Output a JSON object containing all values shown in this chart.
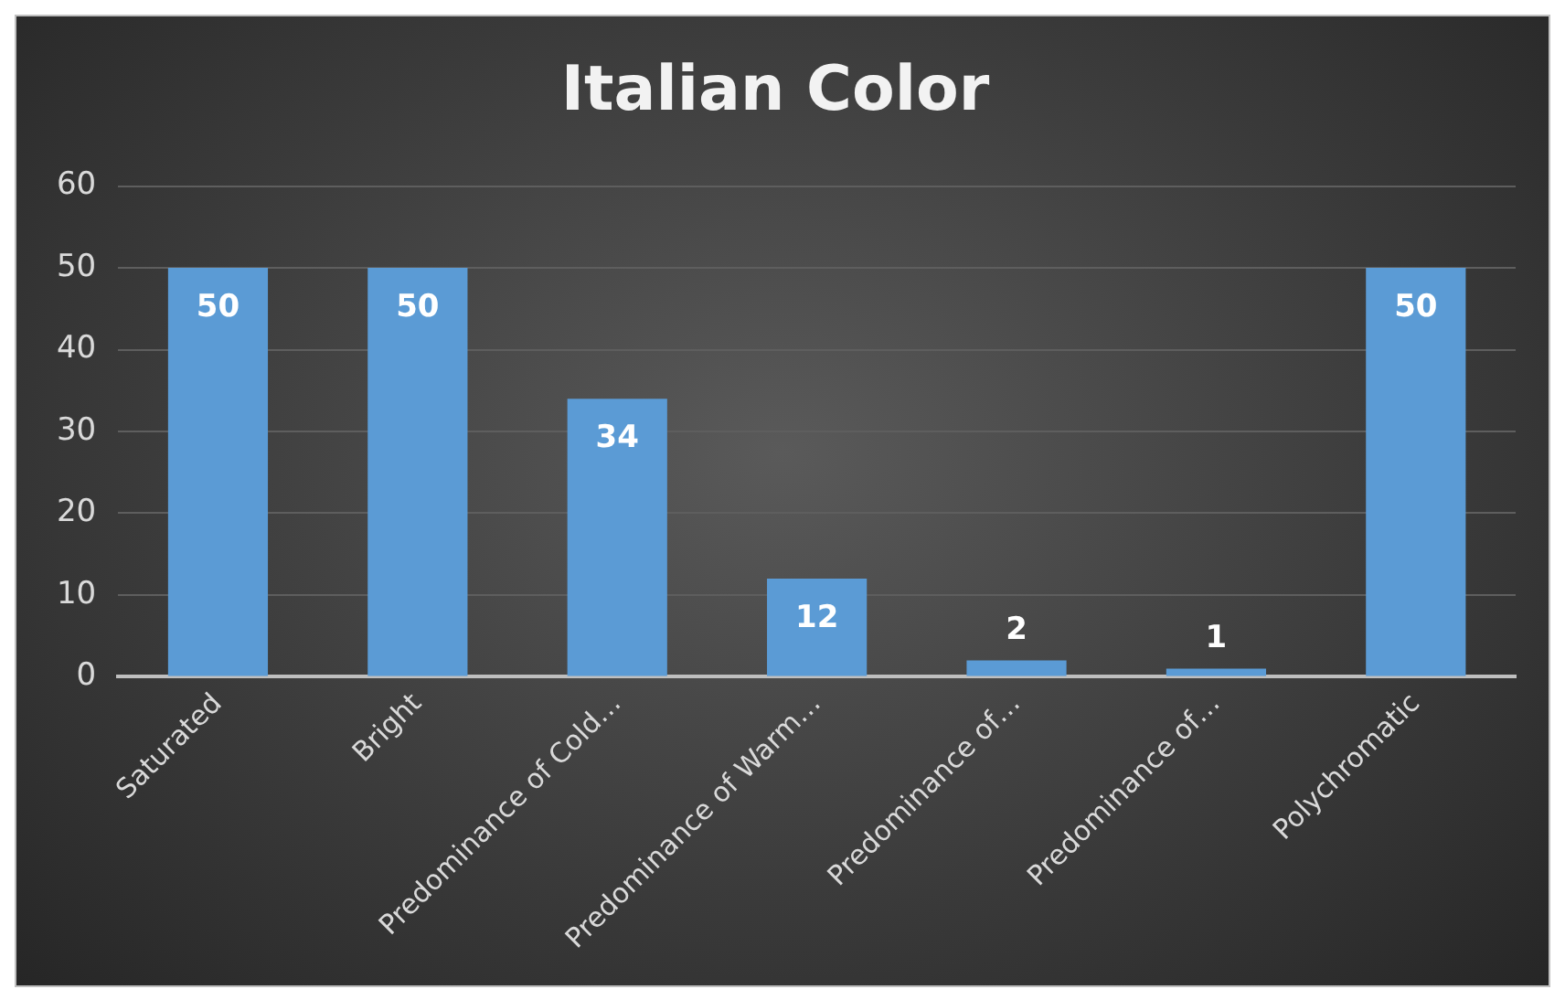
{
  "chart_data": {
    "type": "bar",
    "title": "Italian Color",
    "categories": [
      "Saturated",
      "Bright",
      "Predominance of Cold…",
      "Predominance of Warm…",
      "Predominance of…",
      "Predominance of…",
      "Polychromatic"
    ],
    "values": [
      50,
      50,
      34,
      12,
      2,
      1,
      50
    ],
    "color": "#5b9bd5",
    "ylim": [
      0,
      60
    ],
    "yticks": [
      0,
      10,
      20,
      30,
      40,
      50,
      60
    ],
    "grid": "y",
    "data_labels": true,
    "legend": false
  }
}
